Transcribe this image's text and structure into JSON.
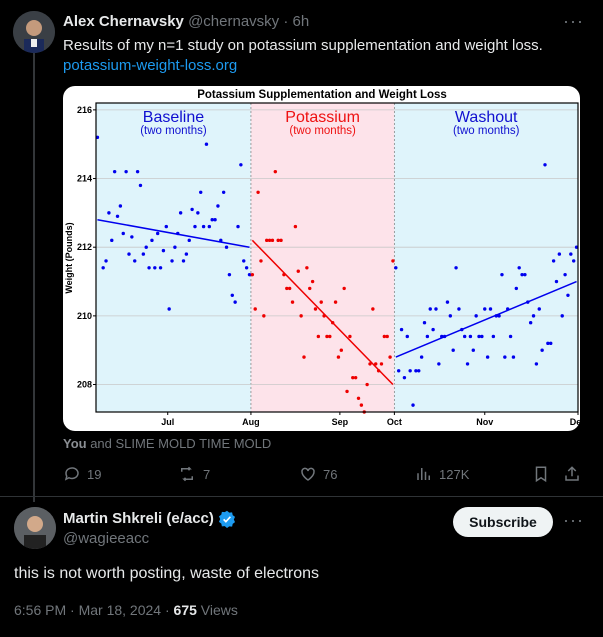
{
  "post1": {
    "author_name": "Alex  Chernavsky",
    "handle": "@chernavsky",
    "dot": "·",
    "time": "6h",
    "text": "Results of my n=1 study on potassium supplementation and weight loss.",
    "link": "potassium-weight-loss.org",
    "media_tag_you": "You",
    "media_tag_rest": " and SLIME MOLD TIME MOLD",
    "replies": "19",
    "reposts": "7",
    "likes": "76",
    "views": "127K"
  },
  "chart_data": {
    "type": "scatter",
    "title": "Potassium Supplementation and Weight Loss",
    "ylabel": "Weight (Pounds)",
    "ylim": [
      207.2,
      216.2
    ],
    "yticks": [
      "208",
      "210",
      "212",
      "214",
      "216"
    ],
    "xticks": [
      "Jul",
      "Aug",
      "Sep",
      "Oct",
      "Nov",
      "Dec"
    ],
    "periods": [
      {
        "name": "Baseline",
        "sub": "(two months)",
        "color": "#dff4fb",
        "label_color": "#1010d0"
      },
      {
        "name": "Potassium",
        "sub": "(two months)",
        "color": "#fde3ea",
        "label_color": "#ee1111"
      },
      {
        "name": "Washout",
        "sub": "(two months)",
        "color": "#dff4fb",
        "label_color": "#1010d0"
      }
    ],
    "series": [
      {
        "color": "#0000ee",
        "points": [
          [
            1,
            215.2
          ],
          [
            3,
            211.4
          ],
          [
            4,
            211.6
          ],
          [
            5,
            213
          ],
          [
            6,
            212.2
          ],
          [
            7,
            214.2
          ],
          [
            8,
            212.9
          ],
          [
            9,
            213.2
          ],
          [
            10,
            212.4
          ],
          [
            11,
            214.2
          ],
          [
            12,
            211.8
          ],
          [
            13,
            212.3
          ],
          [
            14,
            211.6
          ],
          [
            15,
            214.2
          ],
          [
            16,
            213.8
          ],
          [
            17,
            211.8
          ],
          [
            18,
            212
          ],
          [
            19,
            211.4
          ],
          [
            20,
            212.2
          ],
          [
            21,
            211.4
          ],
          [
            22,
            212.4
          ],
          [
            23,
            211.4
          ],
          [
            24,
            211.9
          ],
          [
            25,
            212.6
          ],
          [
            26,
            210.2
          ],
          [
            27,
            211.6
          ],
          [
            28,
            212
          ],
          [
            29,
            212.4
          ],
          [
            30,
            213
          ],
          [
            31,
            211.6
          ],
          [
            32,
            211.8
          ],
          [
            33,
            212.2
          ],
          [
            34,
            213.1
          ],
          [
            35,
            212.6
          ],
          [
            36,
            213
          ],
          [
            37,
            213.6
          ],
          [
            38,
            212.6
          ],
          [
            39,
            215
          ],
          [
            40,
            212.6
          ],
          [
            41,
            212.8
          ],
          [
            42,
            212.8
          ],
          [
            43,
            213.2
          ],
          [
            44,
            212.2
          ],
          [
            45,
            213.6
          ],
          [
            46,
            212
          ],
          [
            47,
            211.2
          ],
          [
            48,
            210.6
          ],
          [
            49,
            210.4
          ],
          [
            50,
            212.6
          ],
          [
            51,
            214.4
          ],
          [
            52,
            211.6
          ],
          [
            53,
            211.4
          ],
          [
            54,
            211.2
          ]
        ]
      },
      {
        "color": "#ee0000",
        "points": [
          [
            55,
            211.2
          ],
          [
            56,
            210.2
          ],
          [
            57,
            213.6
          ],
          [
            58,
            211.6
          ],
          [
            59,
            210
          ],
          [
            60,
            212.2
          ],
          [
            61,
            212.2
          ],
          [
            62,
            212.2
          ],
          [
            63,
            214.2
          ],
          [
            64,
            212.2
          ],
          [
            65,
            212.2
          ],
          [
            66,
            211.2
          ],
          [
            67,
            210.8
          ],
          [
            68,
            210.8
          ],
          [
            69,
            210.4
          ],
          [
            70,
            212.6
          ],
          [
            71,
            211.3
          ],
          [
            72,
            210
          ],
          [
            73,
            208.8
          ],
          [
            74,
            211.4
          ],
          [
            75,
            210.8
          ],
          [
            76,
            211
          ],
          [
            77,
            210.2
          ],
          [
            78,
            209.4
          ],
          [
            79,
            210.4
          ],
          [
            80,
            210
          ],
          [
            81,
            209.4
          ],
          [
            82,
            209.4
          ],
          [
            83,
            209.8
          ],
          [
            84,
            210.4
          ],
          [
            85,
            208.8
          ],
          [
            86,
            209
          ],
          [
            87,
            210.8
          ],
          [
            88,
            207.8
          ],
          [
            89,
            209.4
          ],
          [
            90,
            208.2
          ],
          [
            91,
            208.2
          ],
          [
            92,
            207.6
          ],
          [
            93,
            207.4
          ],
          [
            94,
            207.2
          ],
          [
            95,
            208
          ],
          [
            96,
            208.6
          ],
          [
            97,
            210.2
          ],
          [
            98,
            208.6
          ],
          [
            99,
            208.4
          ],
          [
            100,
            208.6
          ],
          [
            101,
            209.4
          ],
          [
            102,
            209.4
          ],
          [
            103,
            208.8
          ],
          [
            104,
            211.6
          ]
        ]
      },
      {
        "color": "#0000ee",
        "points": [
          [
            105,
            211.4
          ],
          [
            106,
            208.4
          ],
          [
            107,
            209.6
          ],
          [
            108,
            208.2
          ],
          [
            109,
            209.4
          ],
          [
            110,
            208.4
          ],
          [
            111,
            207.4
          ],
          [
            112,
            208.4
          ],
          [
            113,
            208.4
          ],
          [
            114,
            208.8
          ],
          [
            115,
            209.8
          ],
          [
            116,
            209.4
          ],
          [
            117,
            210.2
          ],
          [
            118,
            209.6
          ],
          [
            119,
            210.2
          ],
          [
            120,
            208.6
          ],
          [
            121,
            209.4
          ],
          [
            122,
            209.4
          ],
          [
            123,
            210.4
          ],
          [
            124,
            210
          ],
          [
            125,
            209
          ],
          [
            126,
            211.4
          ],
          [
            127,
            210.2
          ],
          [
            128,
            209.6
          ],
          [
            129,
            209.4
          ],
          [
            130,
            208.6
          ],
          [
            131,
            209.4
          ],
          [
            132,
            209
          ],
          [
            133,
            210
          ],
          [
            134,
            209.4
          ],
          [
            135,
            209.4
          ],
          [
            136,
            210.2
          ],
          [
            137,
            208.8
          ],
          [
            138,
            210.2
          ],
          [
            139,
            209.4
          ],
          [
            140,
            210
          ],
          [
            141,
            210
          ],
          [
            142,
            211.2
          ],
          [
            143,
            208.8
          ],
          [
            144,
            210.2
          ],
          [
            145,
            209.4
          ],
          [
            146,
            208.8
          ],
          [
            147,
            210.8
          ],
          [
            148,
            211.4
          ],
          [
            149,
            211.2
          ],
          [
            150,
            211.2
          ],
          [
            151,
            210.4
          ],
          [
            152,
            209.8
          ],
          [
            153,
            210
          ],
          [
            154,
            208.6
          ],
          [
            155,
            210.2
          ],
          [
            156,
            209
          ],
          [
            157,
            214.4
          ],
          [
            158,
            209.2
          ],
          [
            159,
            209.2
          ],
          [
            160,
            211.6
          ],
          [
            161,
            211
          ],
          [
            162,
            211.8
          ],
          [
            163,
            210
          ],
          [
            164,
            211.2
          ],
          [
            165,
            210.6
          ],
          [
            166,
            211.8
          ],
          [
            167,
            211.6
          ],
          [
            168,
            212
          ]
        ]
      }
    ],
    "trendlines": [
      {
        "color": "#0000ee",
        "x": [
          1,
          54
        ],
        "y": [
          212.8,
          212.0
        ]
      },
      {
        "color": "#ee0000",
        "x": [
          55,
          104
        ],
        "y": [
          212.2,
          208.0
        ]
      },
      {
        "color": "#0000ee",
        "x": [
          105,
          168
        ],
        "y": [
          208.8,
          211.0
        ]
      }
    ]
  },
  "post2": {
    "author_name": "Martin Shkreli (e/acc)",
    "handle": "@wagieeacc",
    "subscribe_label": "Subscribe",
    "text": "this is not worth posting, waste of electrons",
    "time": "6:56 PM · Mar 18, 2024 · ",
    "views_count": "675",
    "views_label": " Views"
  },
  "colors": {
    "background": "#000000",
    "link": "#1d9bf0",
    "muted": "#71767b",
    "verified": "#1d9bf0"
  },
  "icons": [
    "avatar",
    "more-icon",
    "reply-icon",
    "repost-icon",
    "like-icon",
    "views-icon",
    "bookmark-icon",
    "share-icon",
    "verified-badge-icon"
  ]
}
